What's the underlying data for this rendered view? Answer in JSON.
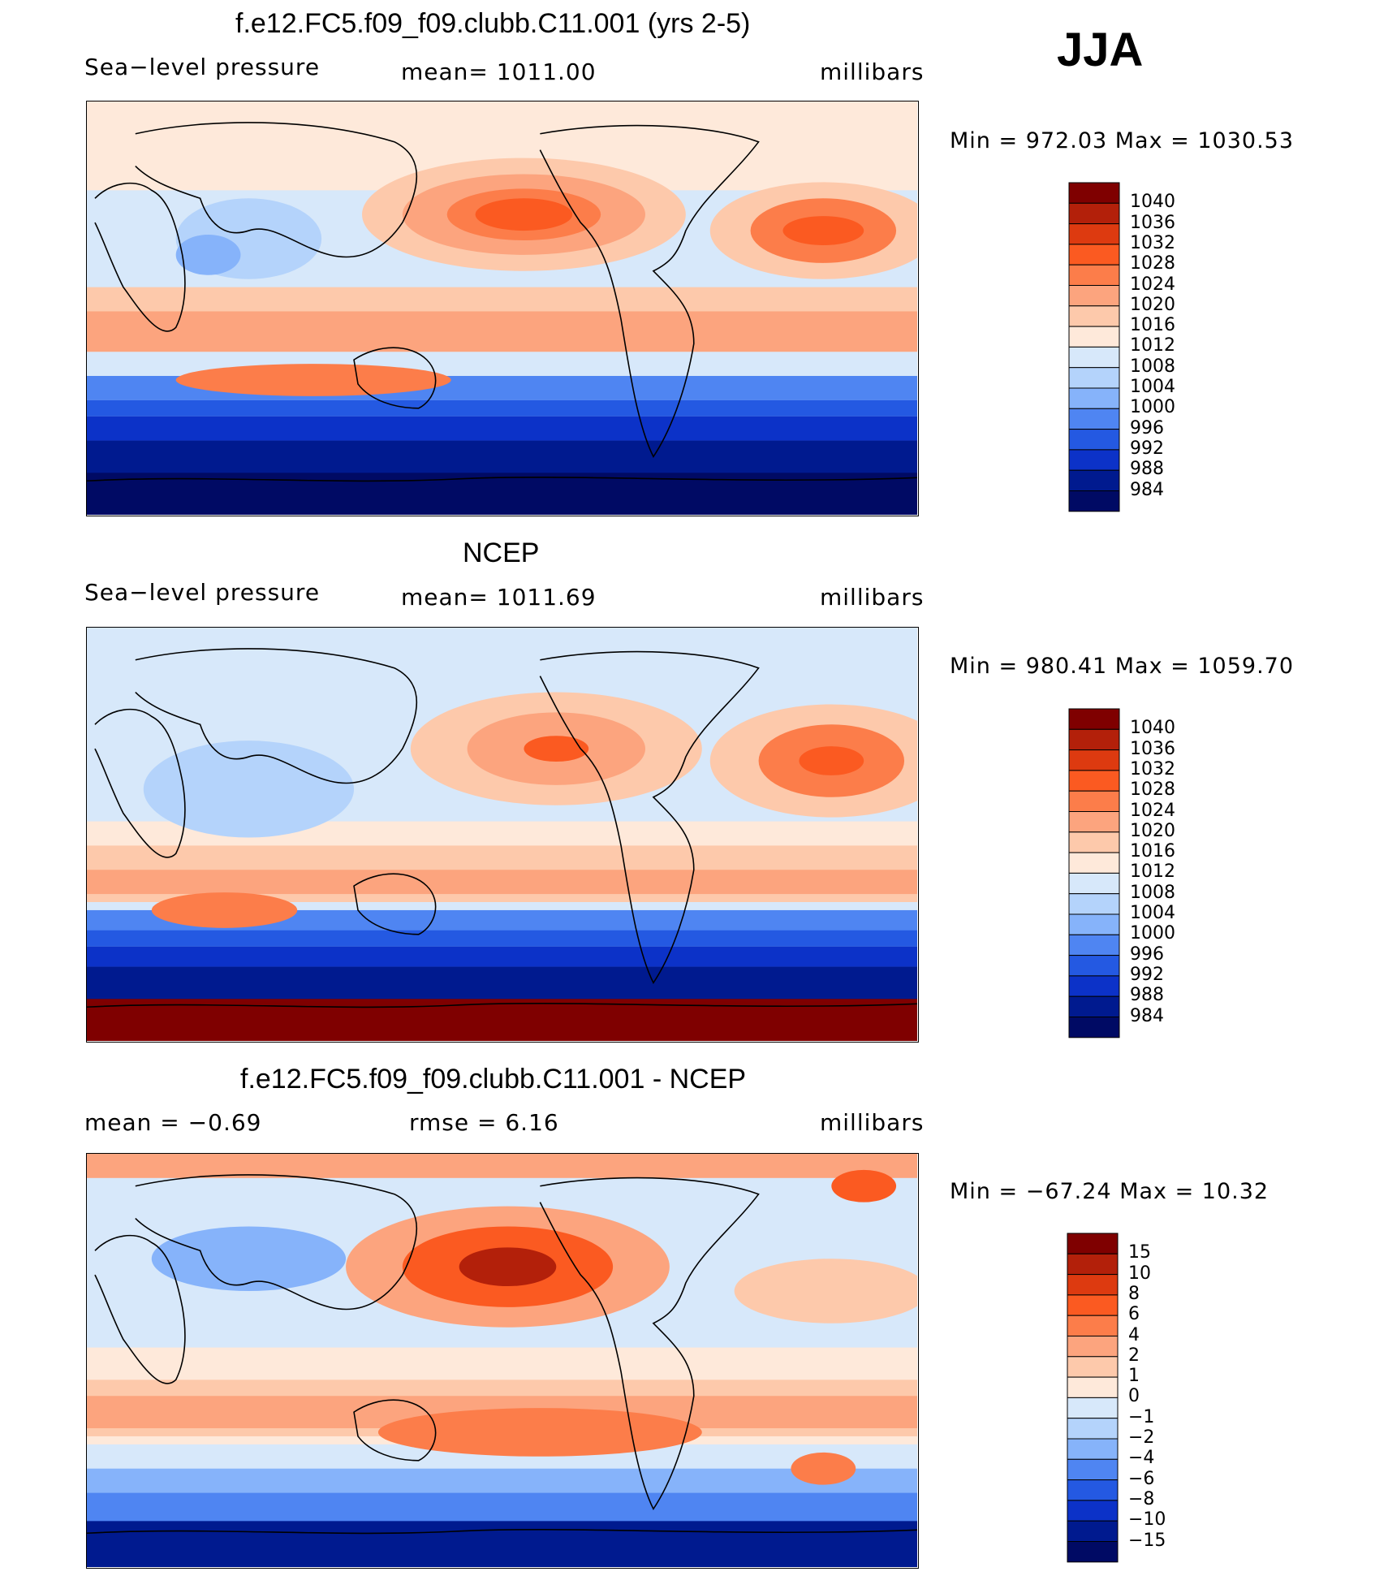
{
  "season": "JJA",
  "panels": [
    {
      "title": "f.e12.FC5.f09_f09.clubb.C11.001 (yrs 2-5)",
      "left_label": "Sea−level pressure",
      "center_label": "mean=  1011.00",
      "right_label": "millibars",
      "minmax": "Min  =  972.03  Max  =  1030.53",
      "colorbar": {
        "levels": [
          "1040",
          "1036",
          "1032",
          "1028",
          "1024",
          "1020",
          "1016",
          "1012",
          "1008",
          "1004",
          "1000",
          "996",
          "992",
          "988",
          "984"
        ],
        "colors": [
          "#7f0000",
          "#b3200a",
          "#dd3a10",
          "#fb5a21",
          "#fc7d4a",
          "#fca47e",
          "#fdc9ab",
          "#fee9da",
          "#d7e8fa",
          "#b4d3fb",
          "#86b3fa",
          "#4f85f2",
          "#2459e2",
          "#0c32c8",
          "#001a8f",
          "#000a64"
        ]
      },
      "chart_data": {
        "type": "heatmap",
        "variable": "Sea-level pressure",
        "units": "millibars",
        "mean": 1011.0,
        "min": 972.03,
        "max": 1030.53,
        "contour_levels": [
          984,
          988,
          992,
          996,
          1000,
          1004,
          1008,
          1012,
          1016,
          1020,
          1024,
          1028,
          1032,
          1036,
          1040
        ]
      }
    },
    {
      "title": "NCEP",
      "left_label": "Sea−level pressure",
      "center_label": "mean=  1011.69",
      "right_label": "millibars",
      "minmax": "Min  =  980.41  Max  =  1059.70",
      "colorbar": {
        "levels": [
          "1040",
          "1036",
          "1032",
          "1028",
          "1024",
          "1020",
          "1016",
          "1012",
          "1008",
          "1004",
          "1000",
          "996",
          "992",
          "988",
          "984"
        ],
        "colors": [
          "#7f0000",
          "#b3200a",
          "#dd3a10",
          "#fb5a21",
          "#fc7d4a",
          "#fca47e",
          "#fdc9ab",
          "#fee9da",
          "#d7e8fa",
          "#b4d3fb",
          "#86b3fa",
          "#4f85f2",
          "#2459e2",
          "#0c32c8",
          "#001a8f",
          "#000a64"
        ]
      },
      "chart_data": {
        "type": "heatmap",
        "variable": "Sea-level pressure",
        "units": "millibars",
        "mean": 1011.69,
        "min": 980.41,
        "max": 1059.7,
        "contour_levels": [
          984,
          988,
          992,
          996,
          1000,
          1004,
          1008,
          1012,
          1016,
          1020,
          1024,
          1028,
          1032,
          1036,
          1040
        ]
      }
    },
    {
      "title": "f.e12.FC5.f09_f09.clubb.C11.001 - NCEP",
      "left_label": "mean  =    −0.69",
      "center_label": "rmse  =     6.16",
      "right_label": "millibars",
      "minmax": "Min  =  −67.24  Max  =    10.32",
      "colorbar": {
        "levels": [
          "15",
          "10",
          "8",
          "6",
          "4",
          "2",
          "1",
          "0",
          "−1",
          "−2",
          "−4",
          "−6",
          "−8",
          "−10",
          "−15"
        ],
        "colors": [
          "#7f0000",
          "#b3200a",
          "#dd3a10",
          "#fb5a21",
          "#fc7d4a",
          "#fca47e",
          "#fdc9ab",
          "#fee9da",
          "#d7e8fa",
          "#b4d3fb",
          "#86b3fa",
          "#4f85f2",
          "#2459e2",
          "#0c32c8",
          "#001a8f",
          "#000a64"
        ]
      },
      "chart_data": {
        "type": "heatmap",
        "variable": "Sea-level pressure difference (model - NCEP)",
        "units": "millibars",
        "mean": -0.69,
        "rmse": 6.16,
        "min": -67.24,
        "max": 10.32,
        "contour_levels": [
          -15,
          -10,
          -8,
          -6,
          -4,
          -2,
          -1,
          0,
          1,
          2,
          4,
          6,
          8,
          10,
          15
        ]
      }
    }
  ]
}
